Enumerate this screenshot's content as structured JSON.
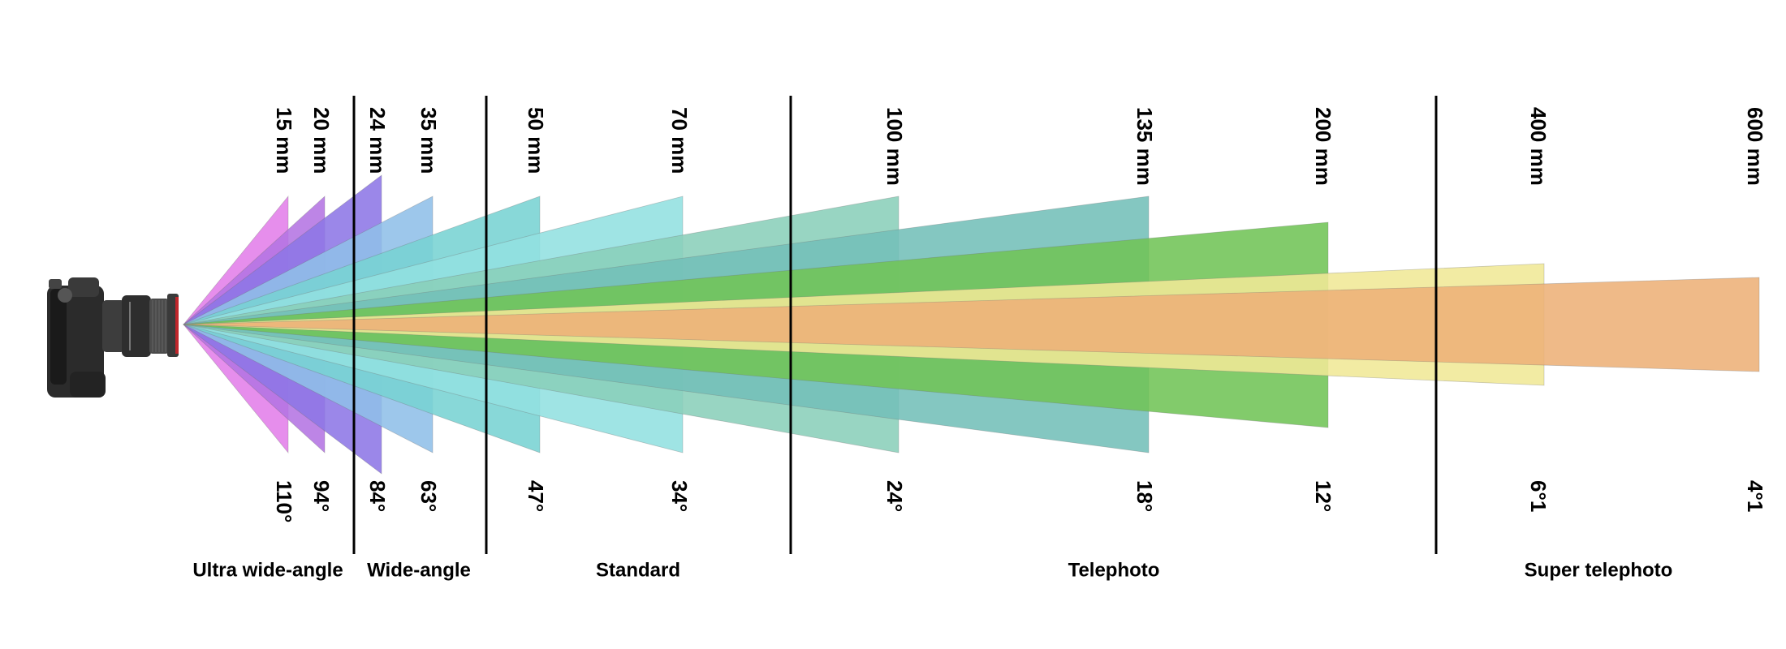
{
  "lenses": [
    {
      "focal": "15 mm",
      "angle": "110°",
      "color": "#e27ee9"
    },
    {
      "focal": "20 mm",
      "angle": "94°",
      "color": "#b474e2"
    },
    {
      "focal": "24 mm",
      "angle": "84°",
      "color": "#8d76e6"
    },
    {
      "focal": "35 mm",
      "angle": "63°",
      "color": "#90bfe8"
    },
    {
      "focal": "50 mm",
      "angle": "47°",
      "color": "#78d3d3"
    },
    {
      "focal": "70 mm",
      "angle": "34°",
      "color": "#92e0e0"
    },
    {
      "focal": "100 mm",
      "angle": "24°",
      "color": "#8acfb9"
    },
    {
      "focal": "135 mm",
      "angle": "18°",
      "color": "#73bfb8"
    },
    {
      "focal": "200 mm",
      "angle": "12°",
      "color": "#71c456"
    },
    {
      "focal": "400 mm",
      "angle": "6°1",
      "color": "#f0e896"
    },
    {
      "focal": "600 mm",
      "angle": "4°1",
      "color": "#edb078"
    }
  ],
  "categories": [
    {
      "label": "Ultra wide-angle"
    },
    {
      "label": "Wide-angle"
    },
    {
      "label": "Standard"
    },
    {
      "label": "Telephoto"
    },
    {
      "label": "Super telephoto"
    }
  ],
  "camera": {
    "icon": "camera-icon"
  }
}
